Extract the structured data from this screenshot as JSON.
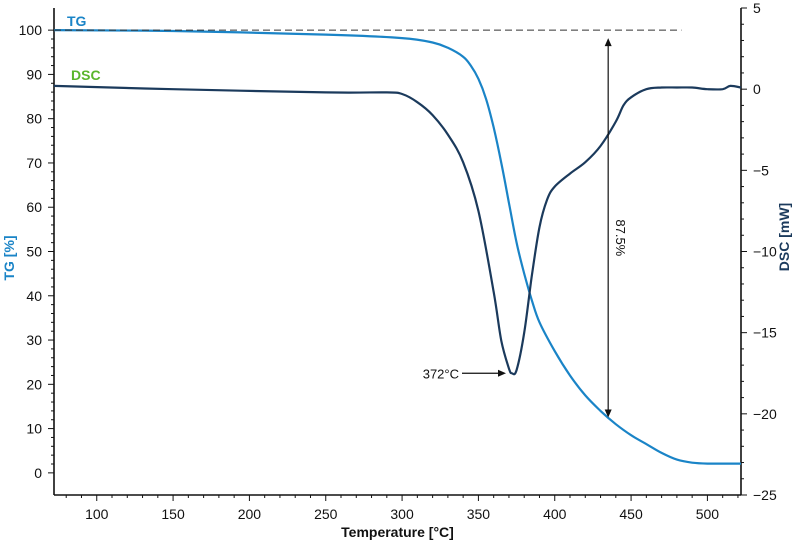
{
  "chart_data": {
    "type": "line",
    "xlabel": "Temperature [°C]",
    "ylabel_left": "TG [%]",
    "ylabel_right": "DSC [mW]",
    "xlim": [
      72,
      522
    ],
    "ylim_left": [
      -5,
      105
    ],
    "ylim_right": [
      -25,
      5
    ],
    "x_ticks": [
      100,
      150,
      200,
      250,
      300,
      350,
      400,
      450,
      500
    ],
    "y_ticks_left": [
      0,
      10,
      20,
      30,
      40,
      50,
      60,
      70,
      80,
      90,
      100
    ],
    "y_ticks_right": [
      -25,
      -20,
      -15,
      -10,
      -5,
      0,
      5
    ],
    "colors": {
      "tg": "#1a84c7",
      "dsc": "#1b3a5c",
      "dsc_label": "#5ab52c",
      "axis": "#111111"
    },
    "series": [
      {
        "name": "TG",
        "axis": "left",
        "x": [
          72,
          150,
          250,
          300,
          320,
          330,
          340,
          345,
          350,
          355,
          360,
          365,
          370,
          375,
          380,
          385,
          390,
          400,
          410,
          420,
          430,
          440,
          450,
          460,
          470,
          480,
          490,
          500,
          522
        ],
        "y": [
          100,
          99.8,
          99,
          98.2,
          97.2,
          96,
          94,
          92,
          89,
          84.5,
          78,
          70,
          61,
          52,
          45,
          39,
          34,
          27.5,
          22,
          17.5,
          14,
          11,
          8.5,
          6.5,
          4.5,
          3,
          2.3,
          2.1,
          2.1
        ]
      },
      {
        "name": "DSC",
        "axis": "right",
        "x": [
          72,
          150,
          250,
          290,
          300,
          310,
          320,
          330,
          340,
          350,
          360,
          365,
          370,
          372,
          375,
          380,
          385,
          390,
          395,
          400,
          410,
          420,
          430,
          440,
          445,
          450,
          460,
          470,
          480,
          490,
          500,
          510,
          515,
          522
        ],
        "y": [
          0.2,
          0,
          -0.2,
          -0.2,
          -0.3,
          -0.8,
          -1.6,
          -2.8,
          -4.5,
          -7.5,
          -12.5,
          -15.5,
          -17.2,
          -17.5,
          -17.3,
          -15,
          -11.5,
          -8.5,
          -6.8,
          -6.0,
          -5.2,
          -4.5,
          -3.5,
          -2.0,
          -1.0,
          -0.5,
          0,
          0.1,
          0.1,
          0.1,
          0,
          0,
          0.2,
          0.1
        ]
      }
    ],
    "legend": [
      {
        "label": "TG",
        "color": "#1a84c7",
        "placement": "top-left"
      },
      {
        "label": "DSC",
        "color": "#5ab52c",
        "placement": "top-left"
      }
    ],
    "annotations": {
      "peak_label": "372°C",
      "peak_x": 372,
      "peak_y_right": -17.5,
      "mass_loss_label": "87.5%",
      "mass_loss_x": 435,
      "mass_loss_from": 100,
      "mass_loss_to": 12.5,
      "reference_line_y": 100,
      "reference_line_to_x": 483
    }
  }
}
